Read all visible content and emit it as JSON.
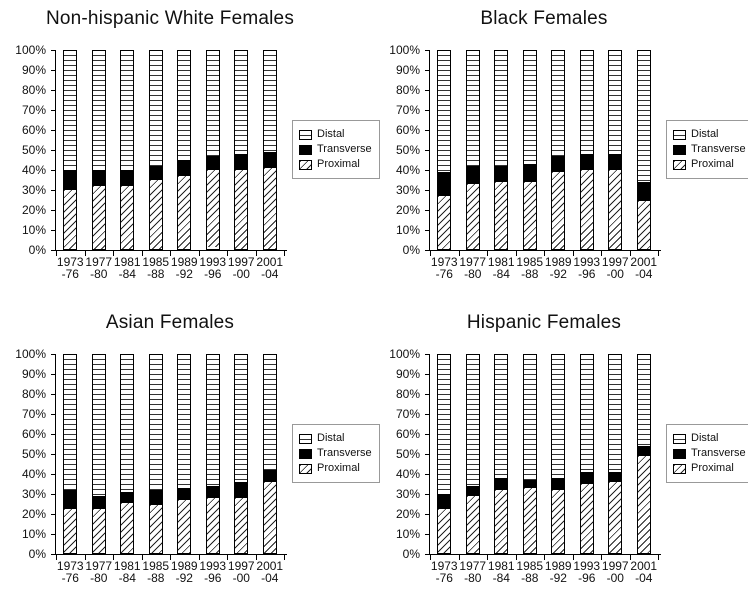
{
  "figure": {
    "background": "#ffffff",
    "text_color": "#111111",
    "bar_outline_color": "#000000",
    "legend_border_color": "#999999"
  },
  "legend": {
    "items": [
      {
        "label": "Distal",
        "pattern": "horizontal-lines"
      },
      {
        "label": "Transverse",
        "pattern": "solid-black"
      },
      {
        "label": "Proximal",
        "pattern": "diagonal-hatch"
      }
    ],
    "position": "right"
  },
  "axis": {
    "yticks": [
      "100%",
      "90%",
      "80%",
      "70%",
      "60%",
      "50%",
      "40%",
      "30%",
      "20%",
      "10%",
      "0%"
    ],
    "ylim": [
      0,
      100
    ]
  },
  "chart_data": [
    {
      "type": "bar",
      "stacked": true,
      "units": "percent",
      "title": "Non-hispanic White Females",
      "categories": [
        [
          "1973",
          "-76"
        ],
        [
          "1977",
          "-80"
        ],
        [
          "1981",
          "-84"
        ],
        [
          "1985",
          "-88"
        ],
        [
          "1989",
          "-92"
        ],
        [
          "1993",
          "-96"
        ],
        [
          "1997",
          "-00"
        ],
        [
          "2001",
          "-04"
        ]
      ],
      "series": [
        {
          "name": "Proximal",
          "values": [
            30,
            32,
            32,
            35,
            37,
            39,
            40,
            41
          ]
        },
        {
          "name": "Transverse",
          "values": [
            10,
            8,
            8,
            7,
            8,
            7,
            8,
            8
          ]
        },
        {
          "name": "Distal",
          "values": [
            60,
            60,
            60,
            58,
            55,
            53,
            52,
            51
          ]
        }
      ],
      "ylim": [
        0,
        100
      ],
      "legend_position": "right",
      "grid": false
    },
    {
      "type": "bar",
      "stacked": true,
      "units": "percent",
      "title": "Black Females",
      "categories": [
        [
          "1973",
          "-76"
        ],
        [
          "1977",
          "-80"
        ],
        [
          "1981",
          "-84"
        ],
        [
          "1985",
          "-88"
        ],
        [
          "1989",
          "-92"
        ],
        [
          "1993",
          "-96"
        ],
        [
          "1997",
          "-00"
        ],
        [
          "2001",
          "-04"
        ]
      ],
      "series": [
        {
          "name": "Proximal",
          "values": [
            27,
            33,
            34,
            34,
            39,
            40,
            40,
            24
          ]
        },
        {
          "name": "Transverse",
          "values": [
            12,
            9,
            8,
            9,
            8,
            8,
            8,
            10
          ]
        },
        {
          "name": "Distal",
          "values": [
            61,
            58,
            58,
            57,
            53,
            52,
            52,
            66
          ]
        }
      ],
      "ylim": [
        0,
        100
      ],
      "legend_position": "right",
      "grid": false
    },
    {
      "type": "bar",
      "stacked": true,
      "units": "percent",
      "title": "Asian Females",
      "categories": [
        [
          "1973",
          "-76"
        ],
        [
          "1977",
          "-80"
        ],
        [
          "1981",
          "-84"
        ],
        [
          "1985",
          "-88"
        ],
        [
          "1989",
          "-92"
        ],
        [
          "1993",
          "-96"
        ],
        [
          "1997",
          "-00"
        ],
        [
          "2001",
          "-04"
        ]
      ],
      "series": [
        {
          "name": "Proximal",
          "values": [
            22,
            22,
            25,
            24,
            27,
            28,
            28,
            36
          ]
        },
        {
          "name": "Transverse",
          "values": [
            10,
            7,
            6,
            8,
            6,
            6,
            8,
            6
          ]
        },
        {
          "name": "Distal",
          "values": [
            68,
            71,
            69,
            68,
            67,
            66,
            64,
            58
          ]
        }
      ],
      "ylim": [
        0,
        100
      ],
      "legend_position": "right",
      "grid": false
    },
    {
      "type": "bar",
      "stacked": true,
      "units": "percent",
      "title": "Hispanic Females",
      "categories": [
        [
          "1973",
          "-76"
        ],
        [
          "1977",
          "-80"
        ],
        [
          "1981",
          "-84"
        ],
        [
          "1985",
          "-88"
        ],
        [
          "1989",
          "-92"
        ],
        [
          "1993",
          "-96"
        ],
        [
          "1997",
          "-00"
        ],
        [
          "2001",
          "-04"
        ]
      ],
      "series": [
        {
          "name": "Proximal",
          "values": [
            22,
            29,
            32,
            33,
            32,
            35,
            36,
            49
          ]
        },
        {
          "name": "Transverse",
          "values": [
            8,
            5,
            6,
            4,
            6,
            6,
            5,
            5
          ]
        },
        {
          "name": "Distal",
          "values": [
            70,
            66,
            62,
            63,
            62,
            59,
            59,
            46
          ]
        }
      ],
      "ylim": [
        0,
        100
      ],
      "legend_position": "right",
      "grid": false
    }
  ]
}
